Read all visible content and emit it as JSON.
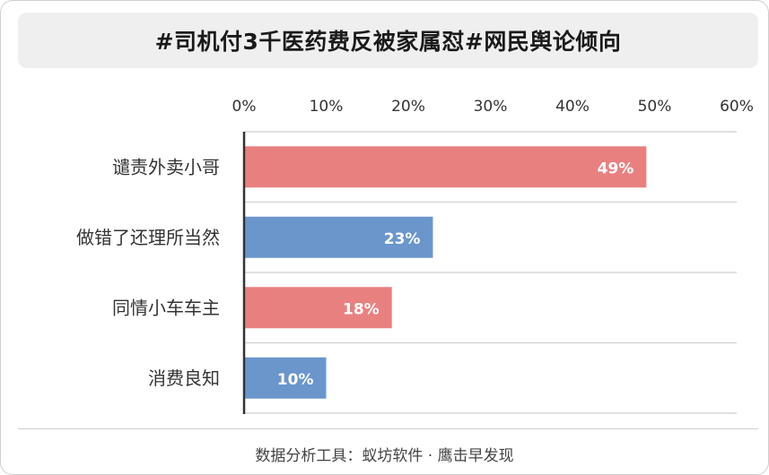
{
  "title": "#司机付3千医药费反被家属怼#网民舆论倾向",
  "footer": "数据分析工具：蚁坊软件 · 鹰击早发现",
  "colors": {
    "red": "#e98080",
    "blue": "#6a96cc",
    "grid": "#d6d6d6",
    "axis": "#333333",
    "text": "#333333"
  },
  "chart_data": {
    "type": "bar",
    "orientation": "horizontal",
    "categories": [
      "谴责外卖小哥",
      "做错了还理所当然",
      "同情小车车主",
      "消费良知"
    ],
    "values": [
      49,
      23,
      18,
      10
    ],
    "value_labels": [
      "49%",
      "23%",
      "18%",
      "10%"
    ],
    "bar_colors": [
      "red",
      "blue",
      "red",
      "blue"
    ],
    "xlim": [
      0,
      60
    ],
    "xticks": [
      0,
      10,
      20,
      30,
      40,
      50,
      60
    ],
    "xtick_labels": [
      "0%",
      "10%",
      "20%",
      "30%",
      "40%",
      "50%",
      "60%"
    ],
    "axis_position": "top",
    "grid": "horizontal separators",
    "legend": "none"
  }
}
